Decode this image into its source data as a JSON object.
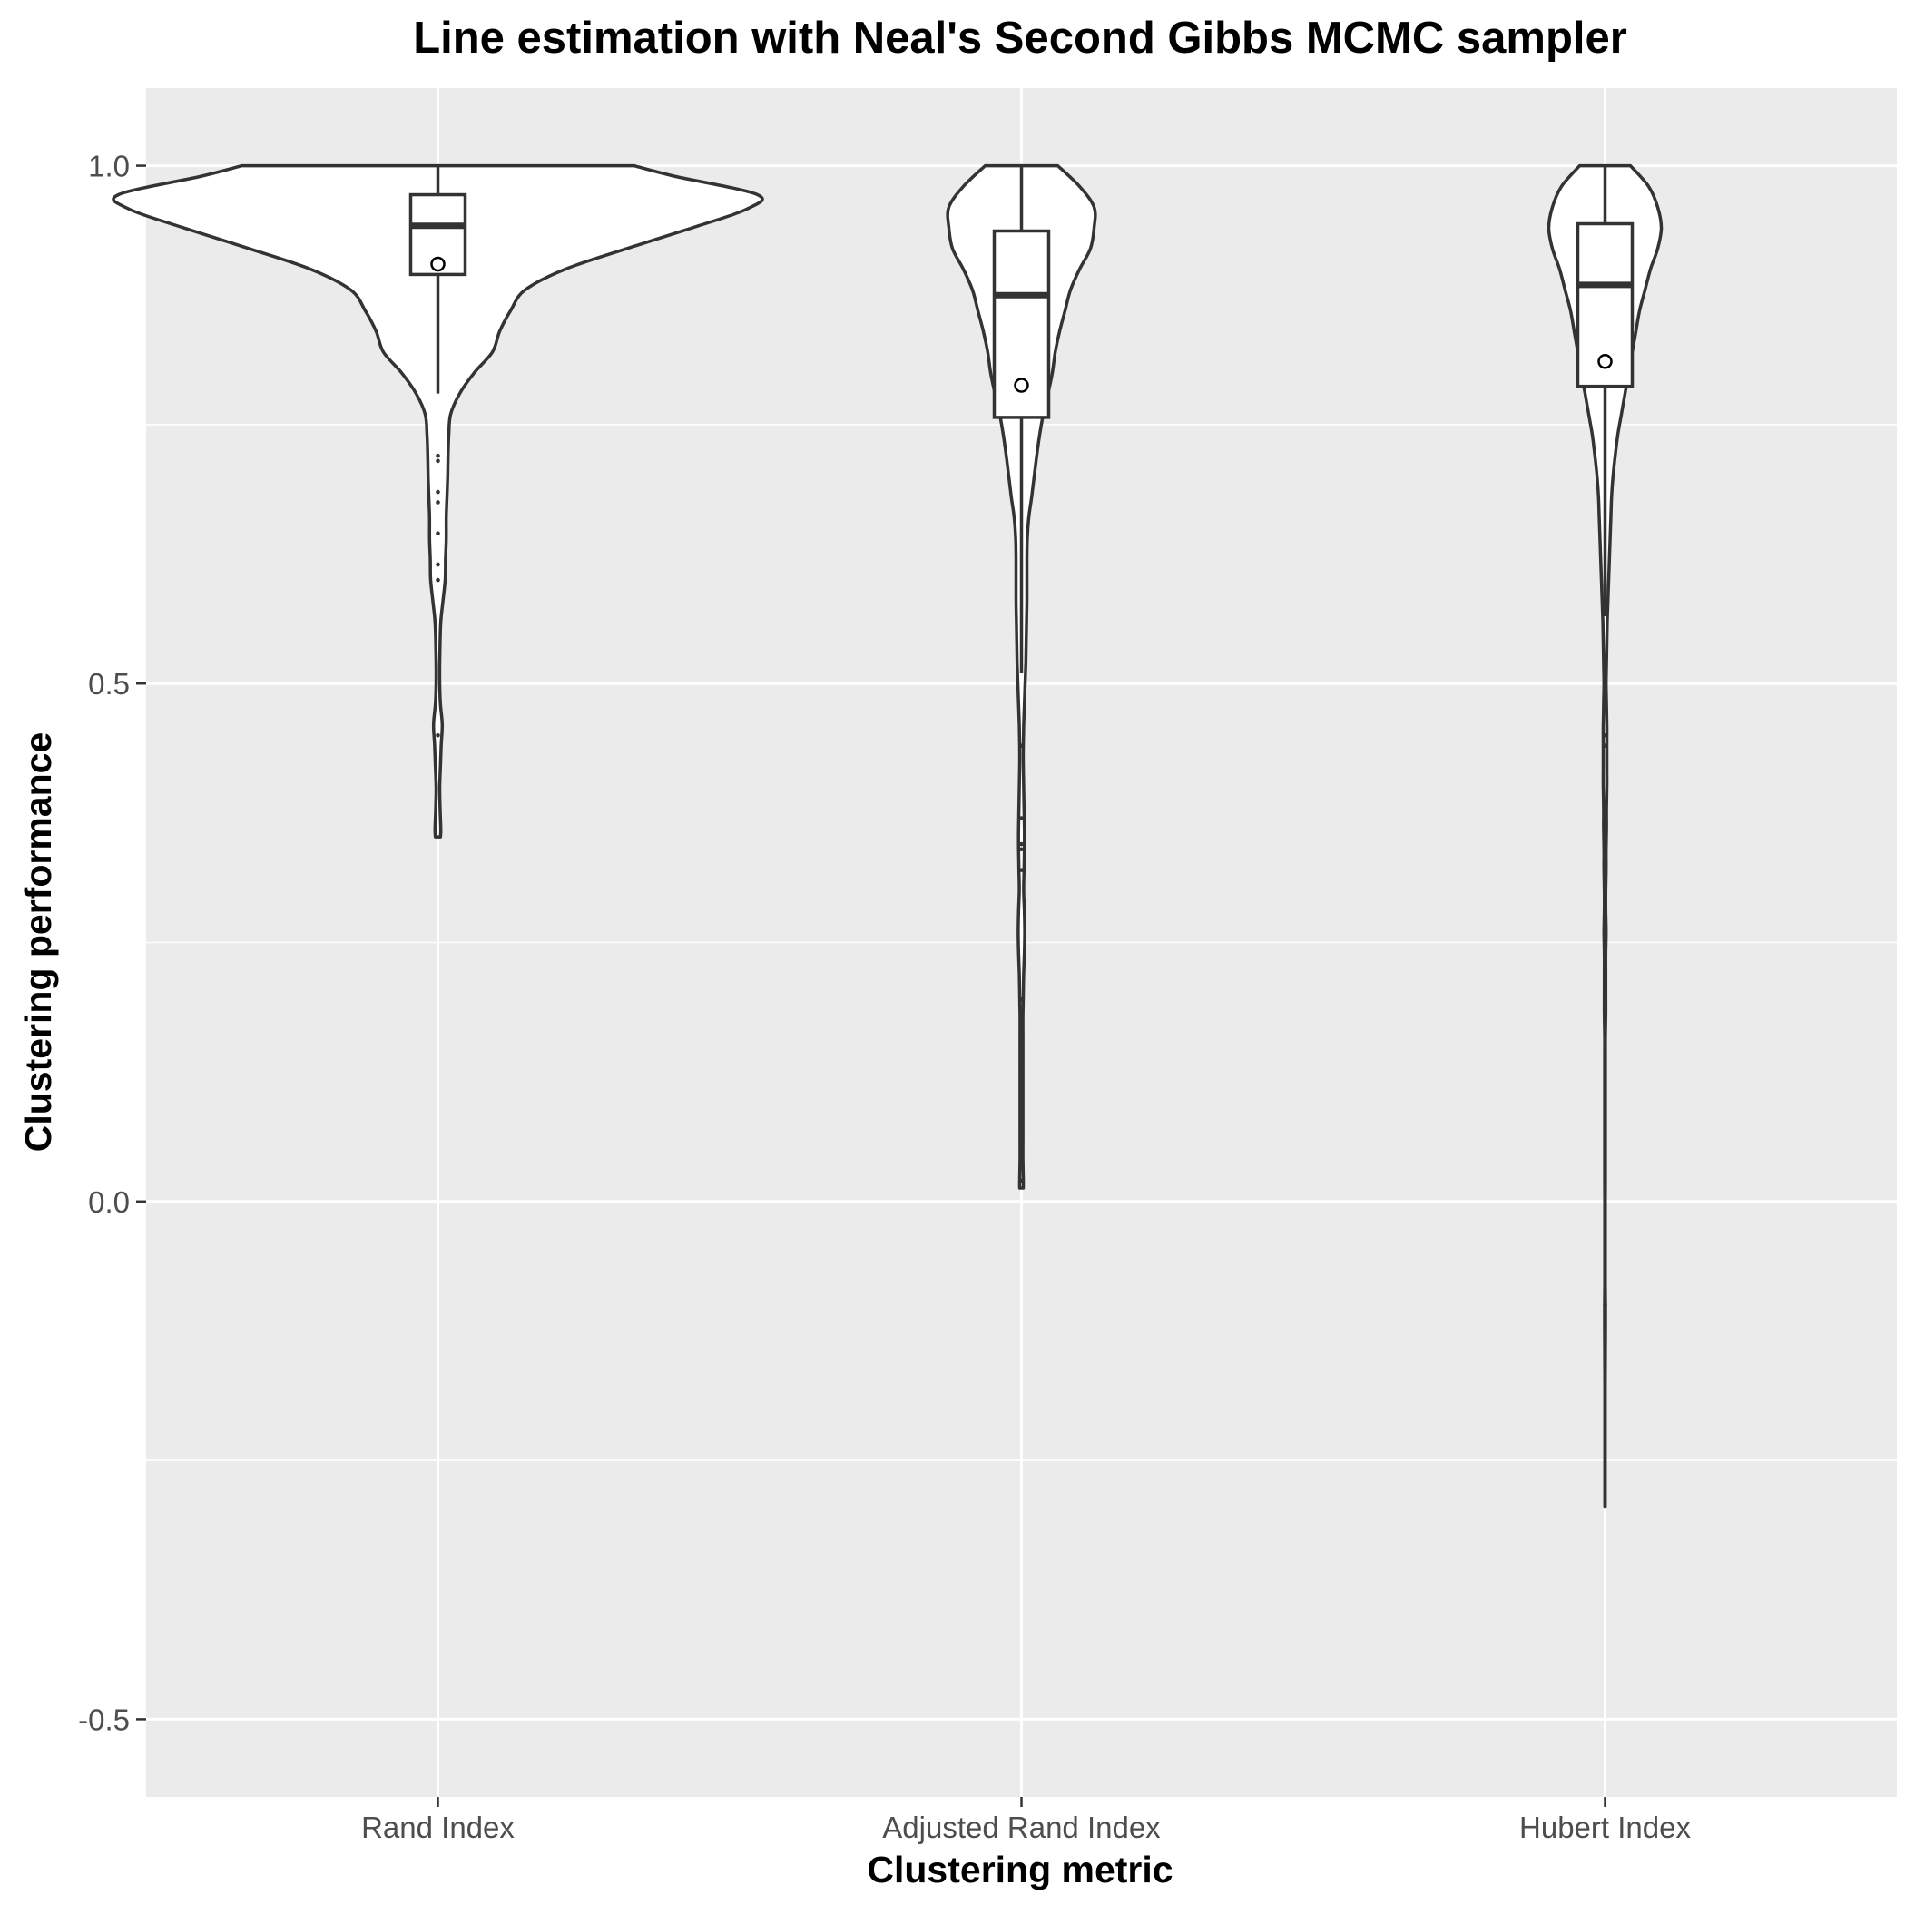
{
  "chart_data": {
    "type": "violin",
    "title": "Line estimation with Neal's Second Gibbs MCMC sampler",
    "xlabel": "Clustering metric",
    "ylabel": "Clustering performance",
    "ylim": [
      -0.575,
      1.075
    ],
    "y_ticks": [
      -0.5,
      0.0,
      0.5,
      1.0
    ],
    "y_tick_labels": [
      "-0.5",
      "0.0",
      "0.5",
      "1.0"
    ],
    "grid": true,
    "legend": "none",
    "colors": {
      "panel_background": "#ebebeb",
      "grid_major": "#ffffff",
      "violin_fill": "#ffffff",
      "outline": "#333333",
      "tick_label": "#4d4d4d"
    },
    "categories": [
      "Rand Index",
      "Adjusted Rand Index",
      "Hubert Index"
    ],
    "series": [
      {
        "box": {
          "whisker_low": 0.78,
          "q1": 0.895,
          "median": 0.942,
          "q3": 0.972,
          "whisker_high": 1.0
        },
        "mean": 0.905,
        "outliers": [
          0.72,
          0.715,
          0.685,
          0.675,
          0.645,
          0.615,
          0.6,
          0.45
        ],
        "density": [
          [
            1.0,
            0.54
          ],
          [
            0.99,
            0.65
          ],
          [
            0.972,
            0.88
          ],
          [
            0.958,
            0.85
          ],
          [
            0.94,
            0.7
          ],
          [
            0.92,
            0.52
          ],
          [
            0.9,
            0.35
          ],
          [
            0.88,
            0.24
          ],
          [
            0.86,
            0.2
          ],
          [
            0.84,
            0.17
          ],
          [
            0.82,
            0.15
          ],
          [
            0.8,
            0.1
          ],
          [
            0.78,
            0.06
          ],
          [
            0.76,
            0.035
          ],
          [
            0.74,
            0.03
          ],
          [
            0.72,
            0.028
          ],
          [
            0.7,
            0.027
          ],
          [
            0.68,
            0.025
          ],
          [
            0.66,
            0.023
          ],
          [
            0.64,
            0.023
          ],
          [
            0.62,
            0.021
          ],
          [
            0.6,
            0.02
          ],
          [
            0.58,
            0.014
          ],
          [
            0.56,
            0.008
          ],
          [
            0.54,
            0.006
          ],
          [
            0.52,
            0.005
          ],
          [
            0.5,
            0.005
          ],
          [
            0.48,
            0.007
          ],
          [
            0.46,
            0.012
          ],
          [
            0.44,
            0.009
          ],
          [
            0.42,
            0.007
          ],
          [
            0.4,
            0.005
          ],
          [
            0.38,
            0.006
          ],
          [
            0.36,
            0.008
          ],
          [
            0.352,
            0.007
          ]
        ]
      },
      {
        "box": {
          "whisker_low": 0.51,
          "q1": 0.757,
          "median": 0.875,
          "q3": 0.937,
          "whisker_high": 1.0
        },
        "mean": 0.788,
        "outliers": [
          0.44,
          0.37,
          0.345,
          0.34,
          0.32,
          0.195,
          0.15,
          0.13,
          0.07,
          0.02
        ],
        "density": [
          [
            1.0,
            0.1
          ],
          [
            0.98,
            0.16
          ],
          [
            0.96,
            0.2
          ],
          [
            0.94,
            0.2
          ],
          [
            0.92,
            0.19
          ],
          [
            0.9,
            0.16
          ],
          [
            0.88,
            0.135
          ],
          [
            0.86,
            0.12
          ],
          [
            0.84,
            0.105
          ],
          [
            0.82,
            0.093
          ],
          [
            0.8,
            0.085
          ],
          [
            0.78,
            0.073
          ],
          [
            0.76,
            0.06
          ],
          [
            0.74,
            0.05
          ],
          [
            0.72,
            0.042
          ],
          [
            0.7,
            0.035
          ],
          [
            0.68,
            0.028
          ],
          [
            0.66,
            0.02
          ],
          [
            0.64,
            0.016
          ],
          [
            0.62,
            0.015
          ],
          [
            0.58,
            0.015
          ],
          [
            0.56,
            0.014
          ],
          [
            0.54,
            0.013
          ],
          [
            0.52,
            0.012
          ],
          [
            0.5,
            0.01
          ],
          [
            0.48,
            0.008
          ],
          [
            0.46,
            0.006
          ],
          [
            0.44,
            0.005
          ],
          [
            0.42,
            0.005
          ],
          [
            0.4,
            0.006
          ],
          [
            0.38,
            0.007
          ],
          [
            0.36,
            0.008
          ],
          [
            0.34,
            0.008
          ],
          [
            0.32,
            0.007
          ],
          [
            0.3,
            0.006
          ],
          [
            0.28,
            0.008
          ],
          [
            0.26,
            0.009
          ],
          [
            0.24,
            0.008
          ],
          [
            0.22,
            0.006
          ],
          [
            0.2,
            0.005
          ],
          [
            0.18,
            0.004
          ],
          [
            0.16,
            0.004
          ],
          [
            0.14,
            0.004
          ],
          [
            0.12,
            0.004
          ],
          [
            0.1,
            0.004
          ],
          [
            0.08,
            0.004
          ],
          [
            0.06,
            0.004
          ],
          [
            0.04,
            0.004
          ],
          [
            0.02,
            0.005
          ],
          [
            0.013,
            0.005
          ]
        ]
      },
      {
        "box": {
          "whisker_low": 0.565,
          "q1": 0.787,
          "median": 0.885,
          "q3": 0.944,
          "whisker_high": 1.0
        },
        "mean": 0.811,
        "outliers": [
          0.45,
          0.44,
          0.375,
          0.355,
          0.27,
          0.21,
          0.18,
          -0.1
        ],
        "density": [
          [
            1.0,
            0.07
          ],
          [
            0.98,
            0.12
          ],
          [
            0.96,
            0.145
          ],
          [
            0.94,
            0.155
          ],
          [
            0.92,
            0.145
          ],
          [
            0.9,
            0.125
          ],
          [
            0.88,
            0.11
          ],
          [
            0.86,
            0.095
          ],
          [
            0.84,
            0.085
          ],
          [
            0.82,
            0.075
          ],
          [
            0.8,
            0.065
          ],
          [
            0.78,
            0.055
          ],
          [
            0.76,
            0.045
          ],
          [
            0.74,
            0.035
          ],
          [
            0.72,
            0.028
          ],
          [
            0.7,
            0.022
          ],
          [
            0.68,
            0.018
          ],
          [
            0.66,
            0.016
          ],
          [
            0.64,
            0.014
          ],
          [
            0.62,
            0.012
          ],
          [
            0.6,
            0.01
          ],
          [
            0.58,
            0.008
          ],
          [
            0.56,
            0.006
          ],
          [
            0.54,
            0.005
          ],
          [
            0.52,
            0.004
          ],
          [
            0.5,
            0.003
          ],
          [
            0.48,
            0.004
          ],
          [
            0.46,
            0.005
          ],
          [
            0.44,
            0.005
          ],
          [
            0.42,
            0.005
          ],
          [
            0.4,
            0.005
          ],
          [
            0.38,
            0.004
          ],
          [
            0.36,
            0.004
          ],
          [
            0.34,
            0.003
          ],
          [
            0.32,
            0.003
          ],
          [
            0.3,
            0.002
          ],
          [
            0.28,
            0.002
          ],
          [
            0.26,
            0.003
          ],
          [
            0.24,
            0.002
          ],
          [
            0.22,
            0.002
          ],
          [
            0.2,
            0.002
          ],
          [
            0.18,
            0.002
          ],
          [
            0.16,
            0.001
          ],
          [
            0.14,
            0.001
          ],
          [
            0.12,
            0.001
          ],
          [
            0.1,
            0.001
          ],
          [
            0.08,
            0.001
          ],
          [
            0.06,
            0.001
          ],
          [
            0.04,
            0.001
          ],
          [
            0.02,
            0.001
          ],
          [
            0.0,
            0.0008
          ],
          [
            -0.02,
            0.0008
          ],
          [
            -0.04,
            0.0008
          ],
          [
            -0.06,
            0.0008
          ],
          [
            -0.08,
            0.0008
          ],
          [
            -0.1,
            0.0012
          ],
          [
            -0.12,
            0.0012
          ],
          [
            -0.14,
            0.001
          ],
          [
            -0.16,
            0.0008
          ],
          [
            -0.18,
            0.0006
          ],
          [
            -0.2,
            0.0005
          ],
          [
            -0.22,
            0.0005
          ],
          [
            -0.24,
            0.0005
          ],
          [
            -0.26,
            0.0005
          ],
          [
            -0.28,
            0.0005
          ],
          [
            -0.295,
            0.0005
          ]
        ]
      }
    ]
  }
}
